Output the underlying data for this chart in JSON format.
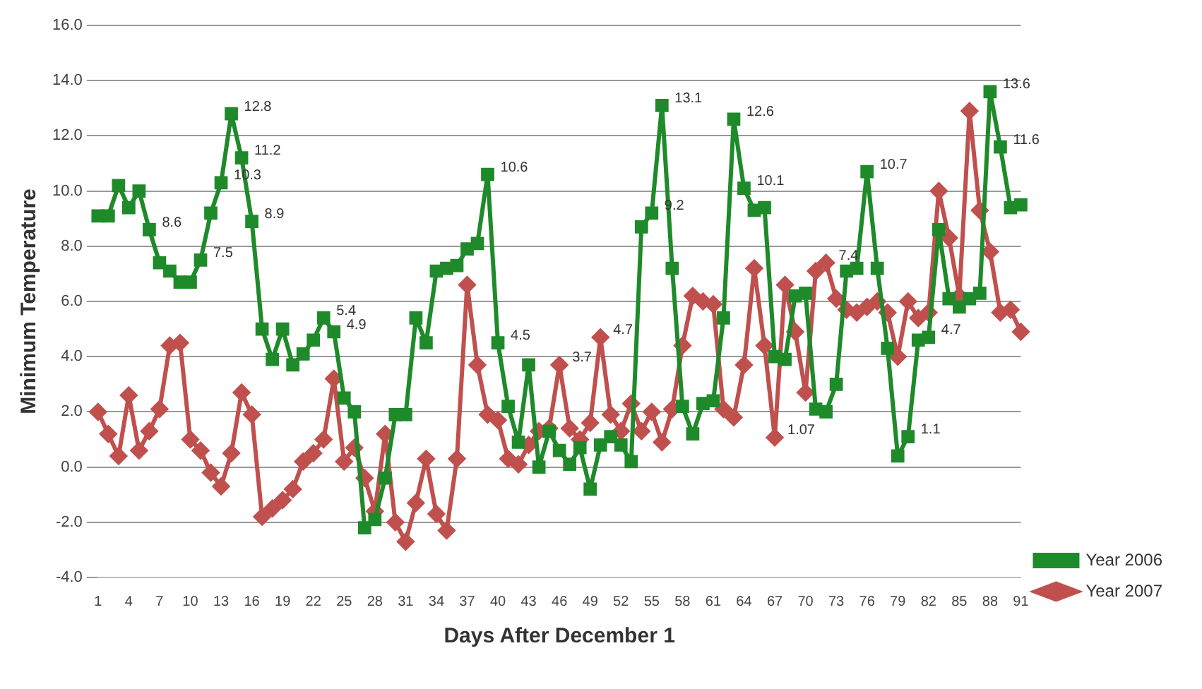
{
  "chart_data": {
    "type": "line",
    "xlabel": "Days After December 1",
    "ylabel": "Minimum Temperature",
    "categories": [
      "1",
      null,
      null,
      "4",
      null,
      null,
      "7",
      null,
      null,
      "10",
      null,
      null,
      "13",
      null,
      null,
      "16",
      null,
      null,
      "19",
      null,
      null,
      "22",
      null,
      null,
      "25",
      null,
      null,
      "28",
      null,
      null,
      "31",
      null,
      null,
      "34",
      null,
      null,
      "37",
      null,
      null,
      "40",
      null,
      null,
      "43",
      null,
      null,
      "46",
      null,
      null,
      "49",
      null,
      null,
      "52",
      null,
      null,
      "55",
      null,
      null,
      "58",
      null,
      null,
      "61",
      null,
      null,
      "64",
      null,
      null,
      "67",
      null,
      null,
      "70",
      null,
      null,
      "73",
      null,
      null,
      "76",
      null,
      null,
      "79",
      null,
      null,
      "82",
      null,
      null,
      "85",
      null,
      null,
      "88",
      null,
      null,
      "91"
    ],
    "series": [
      {
        "name": "Year 2006",
        "color": "#1e8a2a",
        "marker": "square",
        "values": [
          9.1,
          9.1,
          10.2,
          9.4,
          10.0,
          8.6,
          7.4,
          7.1,
          6.7,
          6.7,
          7.5,
          9.2,
          10.3,
          12.8,
          11.2,
          8.9,
          5.0,
          3.9,
          5.0,
          3.7,
          4.1,
          4.6,
          5.4,
          4.9,
          2.5,
          2.0,
          -2.2,
          -1.9,
          -0.4,
          1.9,
          1.9,
          5.4,
          4.5,
          7.1,
          7.2,
          7.3,
          7.9,
          8.1,
          10.6,
          4.5,
          2.2,
          0.9,
          3.7,
          0.0,
          1.3,
          0.6,
          0.1,
          0.7,
          -0.8,
          0.8,
          1.1,
          0.8,
          0.2,
          8.7,
          9.2,
          13.1,
          7.2,
          2.2,
          1.2,
          2.3,
          2.4,
          5.4,
          12.6,
          10.1,
          9.3,
          9.4,
          4.0,
          3.9,
          6.2,
          6.3,
          2.1,
          2.0,
          3.0,
          7.1,
          7.2,
          10.7,
          7.2,
          4.3,
          0.4,
          1.1,
          4.6,
          4.7,
          8.6,
          6.1,
          5.8,
          6.1,
          6.3,
          13.6,
          11.6,
          9.4,
          9.5
        ],
        "value_labels": [
          null,
          null,
          null,
          null,
          null,
          "8.6",
          null,
          null,
          null,
          null,
          "7.5",
          null,
          "10.3",
          "12.8",
          "11.2",
          "8.9",
          null,
          null,
          null,
          null,
          null,
          null,
          "5.4",
          "4.9",
          null,
          null,
          null,
          null,
          null,
          null,
          null,
          null,
          null,
          null,
          null,
          null,
          null,
          null,
          "10.6",
          "4.5",
          null,
          null,
          null,
          null,
          null,
          null,
          null,
          null,
          null,
          null,
          null,
          null,
          null,
          null,
          "9.2",
          "13.1",
          null,
          null,
          null,
          null,
          null,
          null,
          "12.6",
          "10.1",
          null,
          null,
          null,
          null,
          null,
          null,
          null,
          null,
          null,
          null,
          null,
          "10.7",
          null,
          null,
          null,
          "1.1",
          null,
          "4.7",
          null,
          null,
          null,
          null,
          null,
          "13.6",
          "11.6",
          null,
          null
        ]
      },
      {
        "name": "Year 2007",
        "color": "#c0504d",
        "marker": "diamond",
        "values": [
          2.0,
          1.2,
          0.4,
          2.6,
          0.6,
          1.3,
          2.1,
          4.4,
          4.5,
          1.0,
          0.6,
          -0.2,
          -0.7,
          0.5,
          2.7,
          1.9,
          -1.8,
          -1.5,
          -1.2,
          -0.8,
          0.2,
          0.5,
          1.0,
          3.2,
          0.2,
          0.7,
          -0.4,
          -1.6,
          1.2,
          -2.0,
          -2.7,
          -1.3,
          0.3,
          -1.7,
          -2.3,
          0.3,
          6.6,
          3.7,
          1.9,
          1.7,
          0.3,
          0.1,
          0.8,
          1.3,
          1.4,
          3.7,
          1.4,
          1.0,
          1.6,
          4.7,
          1.9,
          1.3,
          2.3,
          1.3,
          2.0,
          0.9,
          2.1,
          4.4,
          6.2,
          6.0,
          5.9,
          2.1,
          1.8,
          3.7,
          7.2,
          4.4,
          1.07,
          6.6,
          4.9,
          2.7,
          7.1,
          7.4,
          6.1,
          5.7,
          5.6,
          5.8,
          6.0,
          5.6,
          4.0,
          6.0,
          5.4,
          5.6,
          10.0,
          8.3,
          6.2,
          12.9,
          9.3,
          7.8,
          5.6,
          5.7,
          4.9
        ],
        "value_labels": [
          null,
          null,
          null,
          null,
          null,
          null,
          null,
          null,
          null,
          null,
          null,
          null,
          null,
          null,
          null,
          null,
          null,
          null,
          null,
          null,
          null,
          null,
          null,
          null,
          null,
          null,
          null,
          null,
          null,
          null,
          null,
          null,
          null,
          null,
          null,
          null,
          null,
          null,
          null,
          null,
          null,
          null,
          null,
          null,
          null,
          "3.7",
          null,
          null,
          null,
          "4.7",
          null,
          null,
          null,
          null,
          null,
          null,
          null,
          null,
          null,
          null,
          null,
          null,
          null,
          null,
          null,
          null,
          "1.07",
          null,
          null,
          null,
          null,
          "7.4",
          null,
          null,
          null,
          null,
          null,
          null,
          null,
          null,
          null,
          null,
          null,
          null,
          null,
          null,
          null,
          null,
          null,
          null,
          null
        ]
      }
    ],
    "ylim": [
      -4,
      16
    ],
    "yticks": [
      {
        "value": -4,
        "label": "-4.0"
      },
      {
        "value": -2,
        "label": "-2.0"
      },
      {
        "value": 0,
        "label": "0.0"
      },
      {
        "value": 2,
        "label": "2.0"
      },
      {
        "value": 4,
        "label": "4.0"
      },
      {
        "value": 6,
        "label": "6.0"
      },
      {
        "value": 8,
        "label": "8.0"
      },
      {
        "value": 10,
        "label": "10.0"
      },
      {
        "value": 12,
        "label": "12.0"
      },
      {
        "value": 14,
        "label": "14.0"
      },
      {
        "value": 16,
        "label": "16.0"
      }
    ],
    "grid": "y",
    "legend": "bottom right",
    "line_style": "solid"
  }
}
